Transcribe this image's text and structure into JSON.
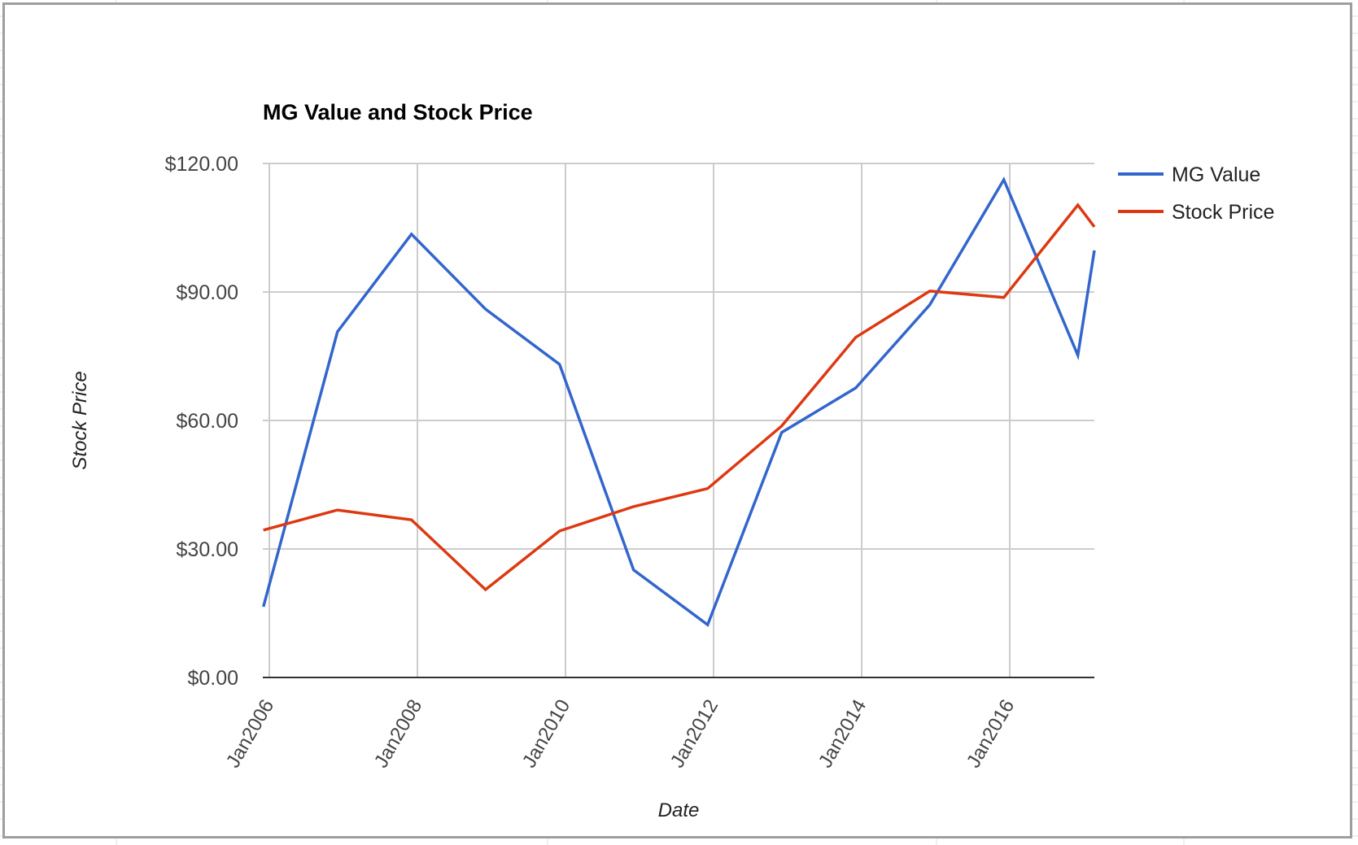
{
  "chart_data": {
    "type": "line",
    "title": "MG Value and Stock Price",
    "xlabel": "Date",
    "ylabel": "Stock Price",
    "ylim": [
      0,
      120
    ],
    "y_ticks": [
      "$0.00",
      "$30.00",
      "$60.00",
      "$90.00",
      "$120.00"
    ],
    "y_tick_values": [
      0,
      30,
      60,
      90,
      120
    ],
    "x_ticks": [
      "Jan2006",
      "Jan2008",
      "Jan2010",
      "Jan2012",
      "Jan2014",
      "Jan2016"
    ],
    "grid": true,
    "legend_position": "right",
    "x": [
      "Dec2005",
      "Dec2006",
      "Dec2007",
      "Dec2008",
      "Dec2009",
      "Dec2010",
      "Dec2011",
      "Dec2012",
      "Dec2013",
      "Dec2014",
      "Dec2015",
      "Dec2016",
      "Apr2017"
    ],
    "x_year_fraction": [
      2005.92,
      2006.92,
      2007.92,
      2008.92,
      2009.92,
      2010.92,
      2011.92,
      2012.92,
      2013.92,
      2014.92,
      2015.92,
      2016.92,
      2017.17
    ],
    "series": [
      {
        "name": "MG Value",
        "color": "#3366cc",
        "values": [
          16.5,
          80.7,
          103.5,
          86.0,
          73.1,
          25.1,
          12.3,
          57.2,
          67.6,
          87.0,
          116.2,
          75.2,
          99.7
        ]
      },
      {
        "name": "Stock Price",
        "color": "#dc3912",
        "values": [
          34.4,
          39.1,
          36.8,
          20.5,
          34.2,
          39.9,
          44.1,
          58.7,
          79.4,
          90.2,
          88.7,
          110.3,
          105.2
        ]
      }
    ]
  },
  "legend": {
    "items": [
      {
        "label": "MG Value",
        "color": "#3366cc"
      },
      {
        "label": "Stock Price",
        "color": "#dc3912"
      }
    ]
  }
}
